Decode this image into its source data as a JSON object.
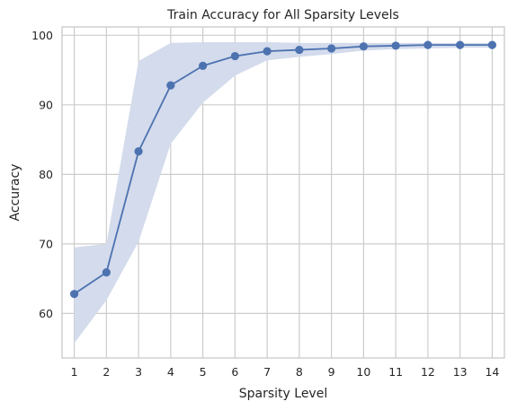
{
  "chart_data": {
    "type": "line",
    "title": "Train Accuracy for All Sparsity Levels",
    "xlabel": "Sparsity Level",
    "ylabel": "Accuracy",
    "x": [
      1,
      2,
      3,
      4,
      5,
      6,
      7,
      8,
      9,
      10,
      11,
      12,
      13,
      14
    ],
    "x_ticks": [
      "1",
      "2",
      "3",
      "4",
      "5",
      "6",
      "7",
      "8",
      "9",
      "10",
      "11",
      "12",
      "13",
      "14"
    ],
    "y_ticks": [
      "60",
      "70",
      "80",
      "90",
      "100"
    ],
    "xlim": [
      0.62,
      14.38
    ],
    "ylim": [
      53.6,
      101.2
    ],
    "grid": true,
    "series": [
      {
        "values": [
          62.8,
          65.9,
          83.3,
          92.8,
          95.6,
          97.0,
          97.7,
          97.9,
          98.1,
          98.4,
          98.5,
          98.6,
          98.6,
          98.6
        ],
        "band_upper": [
          69.5,
          70.0,
          96.3,
          98.9,
          99.0,
          99.0,
          99.0,
          98.9,
          98.9,
          98.9,
          98.9,
          98.9,
          98.9,
          98.9
        ],
        "band_lower": [
          55.7,
          61.9,
          70.3,
          84.4,
          90.3,
          94.2,
          96.4,
          96.9,
          97.3,
          97.8,
          98.0,
          98.1,
          98.2,
          98.2
        ]
      }
    ],
    "colors": {
      "line": "#4c72b0",
      "band": "#d3dbec",
      "grid": "#cccccc",
      "frame": "#cccccc",
      "text": "#262626"
    }
  }
}
